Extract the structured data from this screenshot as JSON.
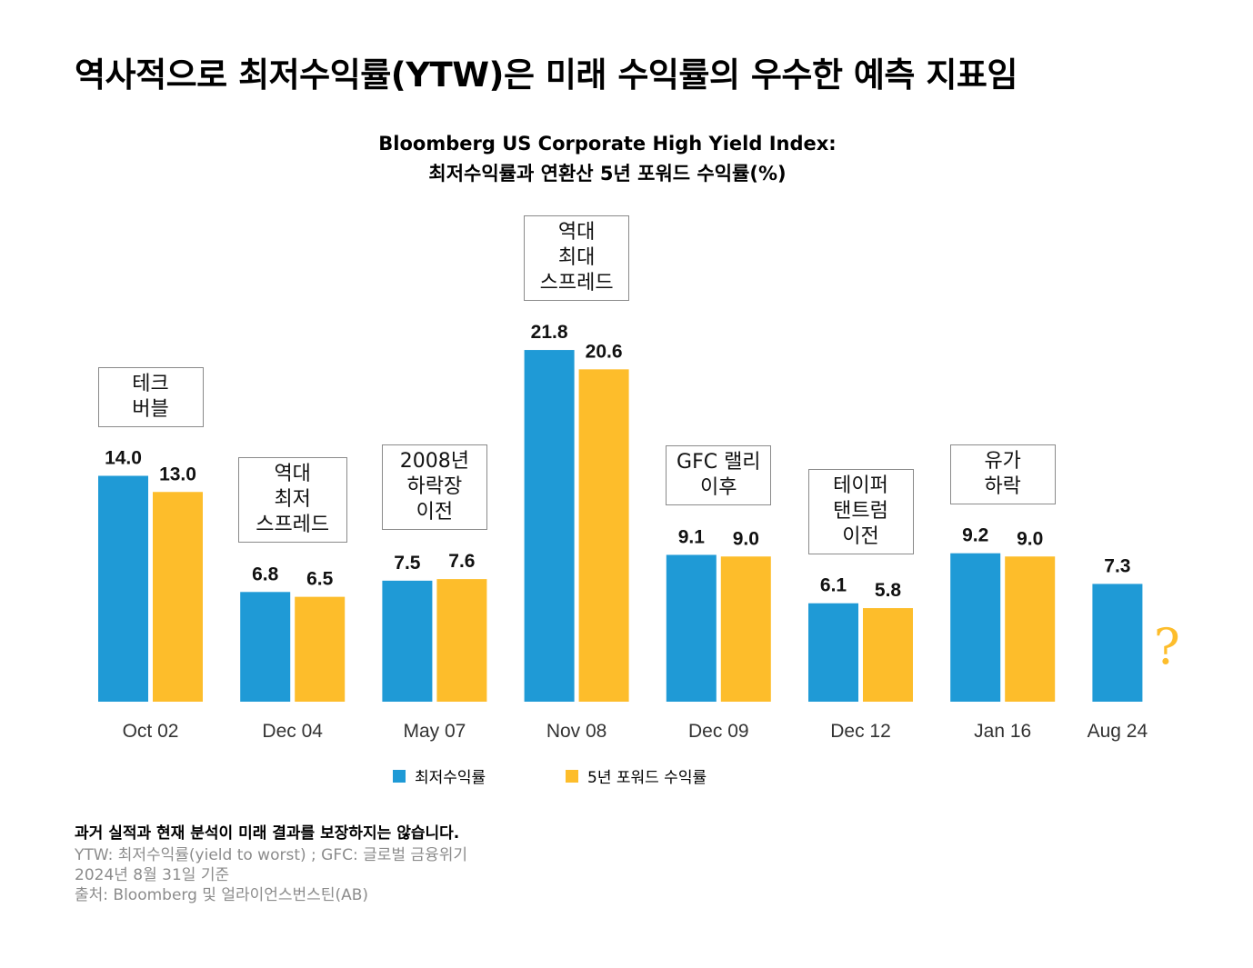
{
  "page": {
    "title": "역사적으로 최저수익률(YTW)은 미래 수익률의 우수한 예측 지표임"
  },
  "chart_data": {
    "type": "bar",
    "title": "Bloomberg US Corporate High Yield Index:",
    "subtitle": "최저수익률과 연환산 5년 포워드 수익률(%)",
    "categories": [
      "Oct 02",
      "Dec 04",
      "May 07",
      "Nov 08",
      "Dec 09",
      "Dec 12",
      "Jan 16",
      "Aug 24"
    ],
    "series": [
      {
        "name": "최저수익률",
        "color": "#1f9ad6",
        "values": [
          14.0,
          6.8,
          7.5,
          21.8,
          9.1,
          6.1,
          9.2,
          7.3
        ]
      },
      {
        "name": "5년 포워드 수익률",
        "color": "#fdbd2b",
        "values": [
          13.0,
          6.5,
          7.6,
          20.6,
          9.0,
          5.8,
          9.0,
          null
        ]
      }
    ],
    "data_labels": [
      [
        "14.0",
        "6.8",
        "7.5",
        "21.8",
        "9.1",
        "6.1",
        "9.2",
        "7.3"
      ],
      [
        "13.0",
        "6.5",
        "7.6",
        "20.6",
        "9.0",
        "5.8",
        "9.0",
        ""
      ]
    ],
    "annotations": [
      "테크\n버블",
      "역대\n최저\n스프레드",
      "2008년\n하락장\n이전",
      "역대\n최대\n스프레드",
      "GFC 랠리\n이후",
      "테이퍼\n탠트럼\n이전",
      "유가\n하락",
      ""
    ],
    "missing_marker": "?",
    "missing_marker_color": "#fdbd2b",
    "xlabel": "",
    "ylabel": "",
    "grid": false,
    "legend_position": "bottom"
  },
  "footnotes": {
    "disclaimer": "과거 실적과 현재 분석이 미래 결과를 보장하지는 않습니다.",
    "abbreviations": "YTW: 최저수익률(yield to worst) ; GFC: 글로벌 금융위기",
    "as_of": "2024년 8월 31일 기준",
    "source": "출처: Bloomberg 및 얼라이언스번스틴(AB)"
  }
}
